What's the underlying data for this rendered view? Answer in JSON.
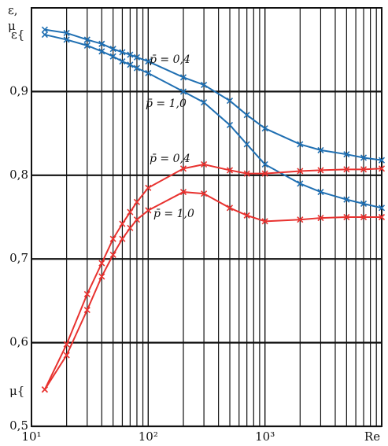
{
  "chart_data": {
    "type": "line",
    "ylabel": [
      "ε,",
      "μ"
    ],
    "xlabel": "Re",
    "log_x": true,
    "grid": true,
    "xlim": [
      10,
      10000
    ],
    "ylim": [
      0.5,
      1.0
    ],
    "xticks": [
      {
        "value": 10,
        "label": "10¹"
      },
      {
        "value": 100,
        "label": "10²"
      },
      {
        "value": 1000,
        "label": "10³"
      }
    ],
    "xgrid": [
      20,
      30,
      40,
      50,
      60,
      70,
      80,
      90,
      100,
      200,
      300,
      400,
      500,
      600,
      700,
      800,
      900,
      1000,
      2000,
      3000,
      4000,
      5000,
      6000,
      7000,
      8000,
      9000
    ],
    "yticks": [
      {
        "value": 0.5,
        "label": "0,5"
      },
      {
        "value": 0.6,
        "label": "0,6"
      },
      {
        "value": 0.7,
        "label": "0,7"
      },
      {
        "value": 0.8,
        "label": "0,8"
      },
      {
        "value": 0.9,
        "label": "0,9"
      }
    ],
    "x": [
      13,
      20,
      30,
      40,
      50,
      60,
      70,
      80,
      100,
      200,
      300,
      500,
      700,
      1000,
      2000,
      3000,
      5000,
      7000,
      10000
    ],
    "series": [
      {
        "name": "p̄ = 0,4",
        "color": "#1f6fb2",
        "values": [
          0.974,
          0.97,
          0.962,
          0.957,
          0.951,
          0.947,
          0.944,
          0.941,
          0.936,
          0.917,
          0.908,
          0.889,
          0.872,
          0.856,
          0.837,
          0.83,
          0.825,
          0.821,
          0.818
        ]
      },
      {
        "name": "p̄ = 1,0",
        "color": "#1f6fb2",
        "values": [
          0.968,
          0.962,
          0.955,
          0.948,
          0.942,
          0.936,
          0.932,
          0.928,
          0.922,
          0.9,
          0.887,
          0.86,
          0.837,
          0.813,
          0.79,
          0.78,
          0.771,
          0.766,
          0.761
        ]
      },
      {
        "name": "p̄ = 0,4",
        "color": "#e8322f",
        "values": [
          0.544,
          0.598,
          0.658,
          0.695,
          0.724,
          0.742,
          0.756,
          0.768,
          0.785,
          0.808,
          0.813,
          0.806,
          0.802,
          0.802,
          0.805,
          0.806,
          0.807,
          0.807,
          0.808
        ]
      },
      {
        "name": "p̄ = 1,0",
        "color": "#e8322f",
        "values": [
          0.544,
          0.585,
          0.639,
          0.679,
          0.705,
          0.724,
          0.737,
          0.747,
          0.758,
          0.78,
          0.778,
          0.761,
          0.752,
          0.745,
          0.747,
          0.749,
          0.75,
          0.75,
          0.75
        ]
      }
    ],
    "annotations": [
      {
        "text": "ε{"
      },
      {
        "text": "μ{"
      }
    ]
  }
}
